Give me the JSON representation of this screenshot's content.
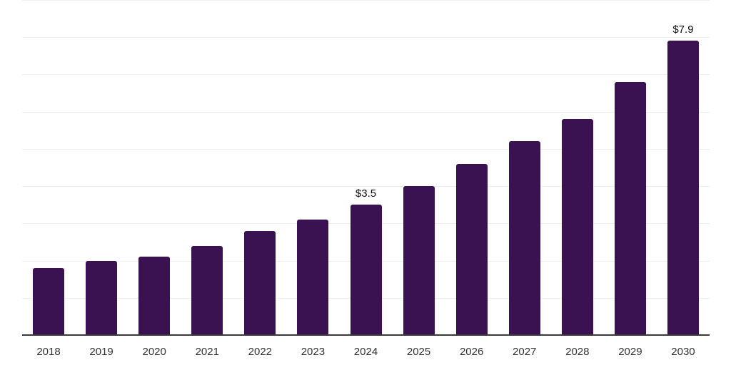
{
  "chart_data": {
    "type": "bar",
    "title": "",
    "xlabel": "",
    "ylabel": "",
    "categories": [
      "2018",
      "2019",
      "2020",
      "2021",
      "2022",
      "2023",
      "2024",
      "2025",
      "2026",
      "2027",
      "2028",
      "2029",
      "2030"
    ],
    "values": [
      1.8,
      2.0,
      2.1,
      2.4,
      2.8,
      3.1,
      3.5,
      4.0,
      4.6,
      5.2,
      5.8,
      6.8,
      7.9
    ],
    "bar_labels": [
      "",
      "",
      "",
      "",
      "",
      "",
      "$3.5",
      "",
      "",
      "",
      "",
      "",
      "$7.9"
    ],
    "ylim": [
      0,
      9
    ],
    "gridline_step": 1,
    "grid": "horizontal-only",
    "legend_position": "none",
    "y_axis_labels_visible": false,
    "colors": {
      "background": "#FFFFFF",
      "bar": "#3A1151",
      "gridline": "#EFEFEF",
      "axis_line": "#3A3A3A",
      "tick_label": "#333333",
      "bar_label": "#111111"
    }
  }
}
